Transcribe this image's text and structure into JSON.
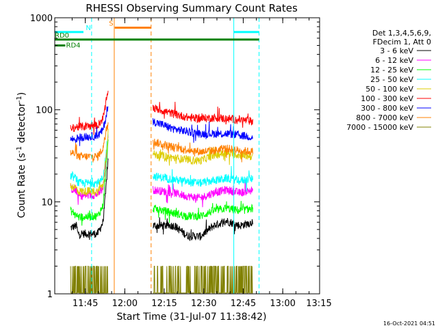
{
  "chart_data": {
    "type": "line",
    "title": "RHESSI Observing Summary Count Rates",
    "xlabel": "Start Time (31-Jul-07 11:38:42)",
    "ylabel_main": "Count Rate (s",
    "ylabel_sup1": "-1",
    "ylabel_mid": " detector",
    "ylabel_sup2": "-1",
    "ylabel_end": ")",
    "yscale": "log",
    "ylim": [
      1,
      1000
    ],
    "xlim_min": [
      -5.3,
      95.3
    ],
    "x_ticks": [
      {
        "label": "11:45",
        "min": 6.3
      },
      {
        "label": "12:00",
        "min": 21.3
      },
      {
        "label": "12:15",
        "min": 36.3
      },
      {
        "label": "12:30",
        "min": 51.3
      },
      {
        "label": "12:45",
        "min": 66.3
      },
      {
        "label": "13:00",
        "min": 81.3
      },
      {
        "label": "13:15",
        "min": 96.3
      }
    ],
    "y_ticks": [
      {
        "label": "1",
        "value": 1
      },
      {
        "label": "10",
        "value": 10
      },
      {
        "label": "100",
        "value": 100
      },
      {
        "label": "1000",
        "value": 1000
      }
    ],
    "legend_header": [
      "Det 1,3,4,5,6,9,",
      "FDecim 1, Att 0"
    ],
    "legend_position": "right",
    "series": [
      {
        "name": "3 - 6 keV",
        "color": "#000000",
        "pre": [
          [
            0.7,
            5.2
          ],
          [
            3,
            5.5
          ],
          [
            3.5,
            4.5
          ],
          [
            11,
            4.5
          ],
          [
            13,
            6
          ],
          [
            14,
            12
          ],
          [
            15,
            30
          ]
        ],
        "post": [
          [
            32,
            5.5
          ],
          [
            40,
            5.5
          ],
          [
            45,
            4.3
          ],
          [
            50,
            4.2
          ],
          [
            55,
            5.5
          ],
          [
            60,
            6.2
          ],
          [
            65,
            5.5
          ],
          [
            70,
            6
          ]
        ]
      },
      {
        "name": "6 - 12 keV",
        "color": "#ff00ff",
        "pre": [
          [
            0.7,
            14
          ],
          [
            3,
            13
          ],
          [
            3.5,
            11.5
          ],
          [
            11,
            12
          ],
          [
            13,
            14
          ],
          [
            14,
            25
          ],
          [
            15,
            55
          ]
        ],
        "post": [
          [
            32,
            13.5
          ],
          [
            40,
            12.5
          ],
          [
            45,
            11.5
          ],
          [
            50,
            11
          ],
          [
            55,
            12.5
          ],
          [
            60,
            13.5
          ],
          [
            65,
            12.5
          ],
          [
            70,
            13.5
          ]
        ]
      },
      {
        "name": "12 - 25 keV",
        "color": "#00ff00",
        "pre": [
          [
            0.7,
            8
          ],
          [
            3,
            7.2
          ],
          [
            3.5,
            6.8
          ],
          [
            11,
            7
          ],
          [
            13,
            9
          ],
          [
            14,
            20
          ],
          [
            15,
            45
          ]
        ],
        "post": [
          [
            32,
            8.5
          ],
          [
            40,
            7.5
          ],
          [
            45,
            7
          ],
          [
            50,
            7
          ],
          [
            55,
            8
          ],
          [
            60,
            8.5
          ],
          [
            65,
            8
          ],
          [
            70,
            8.5
          ]
        ]
      },
      {
        "name": "25 - 50 keV",
        "color": "#00ffff",
        "pre": [
          [
            0.7,
            19
          ],
          [
            3,
            18
          ],
          [
            3.5,
            16
          ],
          [
            11,
            16
          ],
          [
            13,
            18
          ],
          [
            14,
            30
          ],
          [
            15,
            60
          ]
        ],
        "post": [
          [
            32,
            19
          ],
          [
            40,
            17.5
          ],
          [
            45,
            16.5
          ],
          [
            50,
            16
          ],
          [
            55,
            17
          ],
          [
            60,
            18
          ],
          [
            65,
            17
          ],
          [
            70,
            18
          ]
        ]
      },
      {
        "name": "50 - 100 keV",
        "color": "#ddcc00",
        "pre": [
          [
            0.7,
            15
          ],
          [
            3,
            14
          ],
          [
            3.5,
            13
          ],
          [
            11,
            13
          ],
          [
            13,
            15
          ],
          [
            14,
            28
          ],
          [
            15,
            58
          ]
        ],
        "post": [
          [
            32,
            33
          ],
          [
            40,
            30
          ],
          [
            45,
            28.5
          ],
          [
            50,
            28
          ],
          [
            55,
            32
          ],
          [
            60,
            34
          ],
          [
            65,
            32
          ],
          [
            70,
            31
          ]
        ]
      },
      {
        "name": "100 - 300 keV",
        "color": "#ff0000",
        "pre": [
          [
            0.7,
            62
          ],
          [
            3,
            65
          ],
          [
            3.5,
            65
          ],
          [
            11,
            68
          ],
          [
            13,
            80
          ],
          [
            14,
            110
          ],
          [
            15,
            175
          ]
        ],
        "post": [
          [
            32,
            105
          ],
          [
            40,
            90
          ],
          [
            45,
            83
          ],
          [
            50,
            80
          ],
          [
            55,
            82
          ],
          [
            60,
            80
          ],
          [
            65,
            78
          ],
          [
            70,
            75
          ]
        ]
      },
      {
        "name": "300 - 800 keV",
        "color": "#0000ff",
        "pre": [
          [
            0.7,
            48
          ],
          [
            3,
            48
          ],
          [
            3.5,
            50
          ],
          [
            11,
            52
          ],
          [
            13,
            60
          ],
          [
            14,
            80
          ],
          [
            15,
            110
          ]
        ],
        "post": [
          [
            32,
            75
          ],
          [
            40,
            62
          ],
          [
            45,
            58
          ],
          [
            50,
            55
          ],
          [
            55,
            55
          ],
          [
            60,
            55
          ],
          [
            65,
            53
          ],
          [
            70,
            50
          ]
        ]
      },
      {
        "name": "800 - 7000 keV",
        "color": "#ff8000",
        "pre": [
          [
            0.7,
            34
          ],
          [
            3,
            33
          ],
          [
            3.5,
            31
          ],
          [
            11,
            31
          ],
          [
            13,
            38
          ],
          [
            14,
            55
          ],
          [
            15,
            80
          ]
        ],
        "post": [
          [
            32,
            45
          ],
          [
            40,
            39
          ],
          [
            45,
            37
          ],
          [
            50,
            35
          ],
          [
            55,
            36
          ],
          [
            60,
            38
          ],
          [
            65,
            36
          ],
          [
            70,
            35
          ]
        ]
      },
      {
        "name": "7000 - 15000 keV",
        "color": "#808000",
        "pre": [
          [
            0.7,
            1.1
          ],
          [
            8,
            1.1
          ],
          [
            10,
            1.4
          ],
          [
            12,
            2
          ],
          [
            14,
            4
          ],
          [
            15,
            20
          ]
        ],
        "post": [
          [
            32,
            1.1
          ],
          [
            70,
            1.1
          ]
        ]
      }
    ],
    "vertical_lines": [
      {
        "min": 8.7,
        "color": "#00ffff",
        "style": "dashed"
      },
      {
        "min": 17.3,
        "color": "#ff8000",
        "style": "solid"
      },
      {
        "min": 31.3,
        "color": "#ff8000",
        "style": "dashed"
      },
      {
        "min": 62.7,
        "color": "#00ffff",
        "style": "solid"
      },
      {
        "min": 72.3,
        "color": "#00ffff",
        "style": "dashed"
      }
    ],
    "flag_bars": [
      {
        "label": "N",
        "color": "#00ffff",
        "y": 700,
        "segments": [
          [
            -5.3,
            5.6
          ],
          [
            62.7,
            72.3
          ]
        ],
        "label_at": 6.5
      },
      {
        "label": "S",
        "color": "#ff8000",
        "y": 780,
        "segments": [
          [
            17.5,
            31.3
          ]
        ],
        "label_at": 15.3
      },
      {
        "label": "RD0",
        "color": "#008000",
        "y": 580,
        "segments": [
          [
            -5.3,
            72.3
          ]
        ],
        "label_at": -5.3
      },
      {
        "label": "RD4",
        "color": "#008000",
        "y": 500,
        "segments": [
          [
            -5.3,
            -1.3
          ]
        ],
        "label_at": -1
      }
    ]
  },
  "timestamp": "16-Oct-2021 04:51"
}
